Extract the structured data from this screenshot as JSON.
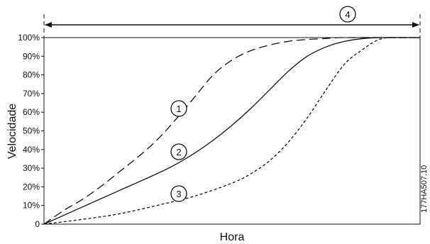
{
  "chart_data": {
    "type": "line",
    "ylabel": "Velocidade",
    "xlabel": "Hora",
    "ylim": [
      0,
      100
    ],
    "xlim": [
      0,
      100
    ],
    "y_ticks": [
      "0",
      "10%",
      "20%",
      "30%",
      "40%",
      "50%",
      "60%",
      "70%",
      "80%",
      "90%",
      "100%"
    ],
    "grid": false,
    "series": [
      {
        "name": "1",
        "line_style": "dashed",
        "points": [
          [
            0,
            0
          ],
          [
            5,
            7
          ],
          [
            10,
            13
          ],
          [
            15,
            20
          ],
          [
            20,
            28
          ],
          [
            25,
            36
          ],
          [
            30,
            45
          ],
          [
            35,
            56
          ],
          [
            40,
            68
          ],
          [
            45,
            80
          ],
          [
            50,
            88
          ],
          [
            55,
            93
          ],
          [
            60,
            96
          ],
          [
            65,
            98
          ],
          [
            70,
            99
          ],
          [
            75,
            99.5
          ],
          [
            80,
            100
          ],
          [
            100,
            100
          ]
        ]
      },
      {
        "name": "2",
        "line_style": "solid",
        "points": [
          [
            0,
            0
          ],
          [
            10,
            9
          ],
          [
            20,
            18
          ],
          [
            30,
            27
          ],
          [
            35,
            32
          ],
          [
            40,
            38
          ],
          [
            45,
            45
          ],
          [
            50,
            53
          ],
          [
            55,
            62
          ],
          [
            60,
            72
          ],
          [
            65,
            82
          ],
          [
            70,
            90
          ],
          [
            75,
            95
          ],
          [
            80,
            98
          ],
          [
            85,
            99.5
          ],
          [
            90,
            100
          ],
          [
            100,
            100
          ]
        ]
      },
      {
        "name": "3",
        "line_style": "dotted",
        "points": [
          [
            0,
            0
          ],
          [
            10,
            2.5
          ],
          [
            20,
            5.5
          ],
          [
            30,
            10
          ],
          [
            40,
            15
          ],
          [
            50,
            22
          ],
          [
            55,
            27
          ],
          [
            60,
            34
          ],
          [
            65,
            44
          ],
          [
            70,
            57
          ],
          [
            75,
            72
          ],
          [
            80,
            86
          ],
          [
            85,
            94
          ],
          [
            88,
            98
          ],
          [
            90,
            99.5
          ],
          [
            92,
            100
          ],
          [
            100,
            100
          ]
        ]
      }
    ],
    "span_label": "4",
    "reference_code": "177HA507.10"
  }
}
